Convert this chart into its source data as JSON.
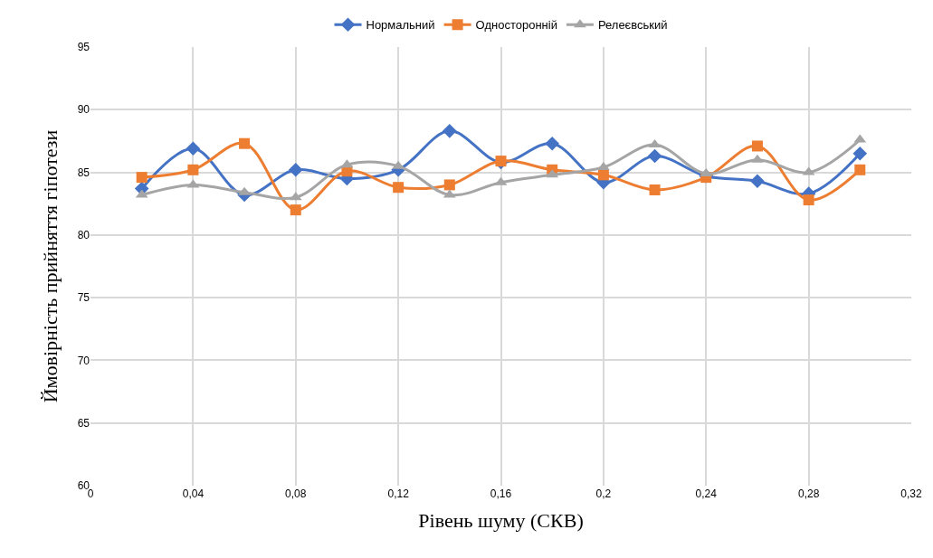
{
  "chart_data": {
    "type": "line",
    "xlabel": "Рівень шуму (СКВ)",
    "ylabel": "Ймовірність прийняття гіпотези",
    "x": [
      0.02,
      0.04,
      0.06,
      0.08,
      0.1,
      0.12,
      0.14,
      0.16,
      0.18,
      0.2,
      0.22,
      0.24,
      0.26,
      0.28,
      0.3
    ],
    "series": [
      {
        "name": "Нормальний",
        "color": "#4472c4",
        "marker": "diamond",
        "values": [
          83.7,
          86.9,
          83.2,
          85.2,
          84.5,
          85.2,
          88.3,
          85.8,
          87.3,
          84.2,
          86.3,
          84.7,
          84.3,
          83.3,
          86.5
        ]
      },
      {
        "name": "Односторонній",
        "color": "#ed7d31",
        "marker": "square",
        "values": [
          84.6,
          85.2,
          87.3,
          82.0,
          85.1,
          83.8,
          84.0,
          85.9,
          85.2,
          84.8,
          83.6,
          84.6,
          87.1,
          82.8,
          85.2
        ]
      },
      {
        "name": "Релеєвський",
        "color": "#a5a5a5",
        "marker": "triangle",
        "values": [
          83.2,
          84.0,
          83.4,
          83.0,
          85.6,
          85.5,
          83.2,
          84.2,
          84.8,
          85.4,
          87.2,
          84.9,
          86.0,
          85.0,
          87.6
        ]
      }
    ],
    "xlim": [
      0,
      0.32
    ],
    "xticks": [
      0,
      {
        "value": 0.04,
        "label": "0,04"
      },
      {
        "value": 0.08,
        "label": "0,08"
      },
      {
        "value": 0.12,
        "label": "0,12"
      },
      {
        "value": 0.16,
        "label": "0,16"
      },
      {
        "value": 0.2,
        "label": "0,2"
      },
      {
        "value": 0.24,
        "label": "0,24"
      },
      {
        "value": 0.28,
        "label": "0,28"
      },
      {
        "value": 0.32,
        "label": "0,32"
      }
    ],
    "ylim": [
      60,
      95
    ],
    "yticks": [
      60,
      65,
      70,
      75,
      80,
      85,
      90,
      95
    ],
    "grid": true,
    "legend": "top",
    "line_style": "solid"
  }
}
